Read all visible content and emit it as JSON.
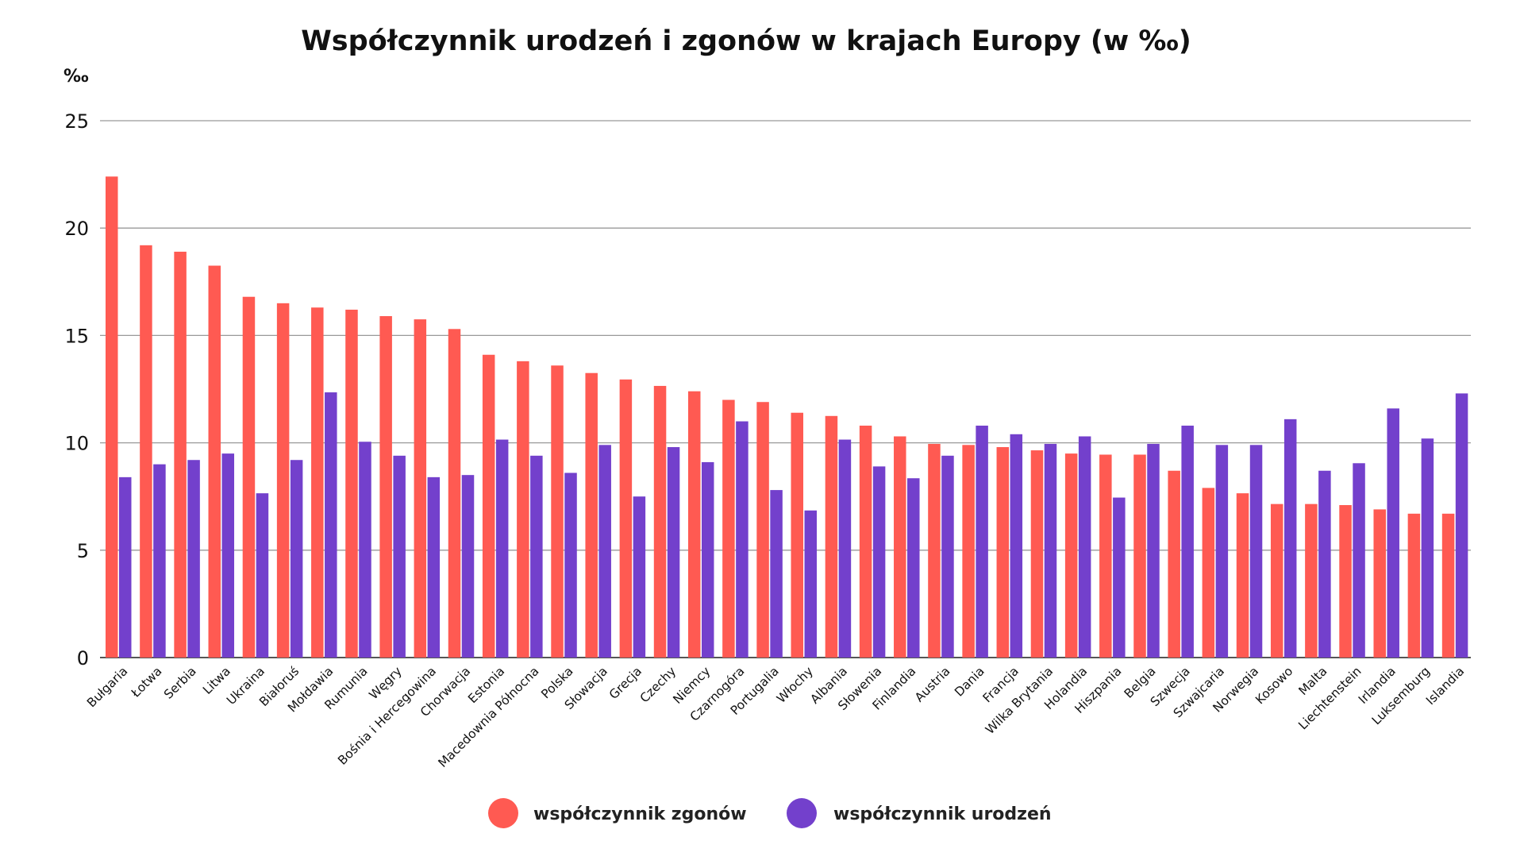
{
  "chart_data": {
    "type": "bar",
    "title": "Współczynnik urodzeń i zgonów w krajach Europy (w ‰)",
    "ylabel": "‰",
    "xlabel": "",
    "ylim": [
      0,
      25
    ],
    "yticks": [
      0,
      5,
      10,
      15,
      20,
      25
    ],
    "grid": true,
    "legend_position": "bottom",
    "categories": [
      "Bułgaria",
      "Łotwa",
      "Serbia",
      "Litwa",
      "Ukraina",
      "Białoruś",
      "Mołdawia",
      "Rumunia",
      "Węgry",
      "Bośnia i Hercegowina",
      "Chorwacja",
      "Estonia",
      "Macedownia Północna",
      "Polska",
      "Słowacja",
      "Grecja",
      "Czechy",
      "Niemcy",
      "Czarnogóra",
      "Portugalia",
      "Włochy",
      "Albania",
      "Słowenia",
      "Finlandia",
      "Austria",
      "Dania",
      "Francja",
      "Wilka Brytania",
      "Holandia",
      "Hiszpania",
      "Belgia",
      "Szwecja",
      "Szwajcaria",
      "Norwegia",
      "Kosowo",
      "Malta",
      "Liechtenstein",
      "Irlandia",
      "Luksemburg",
      "Islandia"
    ],
    "series": [
      {
        "name": "współczynnik zgonów",
        "color": "#ff5a52",
        "values": [
          22.4,
          19.2,
          18.9,
          18.25,
          16.8,
          16.5,
          16.3,
          16.2,
          15.9,
          15.75,
          15.3,
          14.1,
          13.8,
          13.6,
          13.25,
          12.95,
          12.65,
          12.4,
          12.0,
          11.9,
          11.4,
          11.25,
          10.8,
          10.3,
          9.95,
          9.9,
          9.8,
          9.65,
          9.5,
          9.45,
          9.45,
          8.7,
          7.9,
          7.65,
          7.15,
          7.15,
          7.1,
          6.9,
          6.7,
          6.7
        ]
      },
      {
        "name": "współczynnik urodzeń",
        "color": "#7340cc",
        "values": [
          8.4,
          9.0,
          9.2,
          9.5,
          7.65,
          9.2,
          12.35,
          10.05,
          9.4,
          8.4,
          8.5,
          10.15,
          9.4,
          8.6,
          9.9,
          7.5,
          9.8,
          9.1,
          11.0,
          7.8,
          6.85,
          10.15,
          8.9,
          8.35,
          9.4,
          10.8,
          10.4,
          9.95,
          10.3,
          7.45,
          9.95,
          10.8,
          9.9,
          9.9,
          11.1,
          8.7,
          9.05,
          11.6,
          10.2,
          12.3
        ]
      }
    ]
  }
}
